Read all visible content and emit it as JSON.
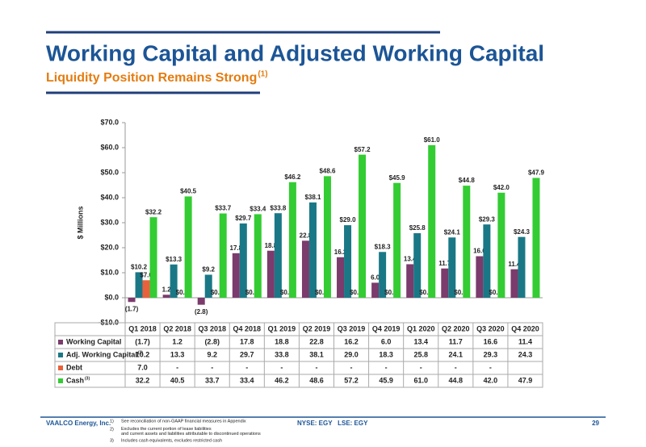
{
  "header": {
    "title": "Working Capital and Adjusted Working Capital",
    "subtitle": "Liquidity Position Remains Strong",
    "subtitle_note": "(1)"
  },
  "chart_data": {
    "type": "bar",
    "ylabel": "$ Millions",
    "categories": [
      "Q1 2018",
      "Q2 2018",
      "Q3 2018",
      "Q4 2018",
      "Q1 2019",
      "Q2 2019",
      "Q3 2019",
      "Q4 2019",
      "Q1 2020",
      "Q2 2020",
      "Q3 2020",
      "Q4 2020"
    ],
    "ylim": [
      -10,
      70
    ],
    "yticks": [
      {
        "value": -10,
        "label": "-$10.0"
      },
      {
        "value": 0,
        "label": "$0.0"
      },
      {
        "value": 10,
        "label": "$10.0"
      },
      {
        "value": 20,
        "label": "$20.0"
      },
      {
        "value": 30,
        "label": "$30.0"
      },
      {
        "value": 40,
        "label": "$40.0"
      },
      {
        "value": 50,
        "label": "$50.0"
      },
      {
        "value": 60,
        "label": "$60.0"
      },
      {
        "value": 70,
        "label": "$70.0"
      }
    ],
    "series": [
      {
        "name": "Working Capital",
        "color": "#7b3b6c",
        "values": [
          -1.7,
          1.2,
          -2.8,
          17.8,
          18.8,
          22.8,
          16.2,
          6.0,
          13.4,
          11.7,
          16.6,
          11.4
        ],
        "value_labels": [
          "(1.7)",
          "1.2",
          "(2.8)",
          "17.8",
          "18.8",
          "22.8",
          "16.2",
          "6.0",
          "13.4",
          "11.7",
          "16.6",
          "11.4"
        ],
        "table_labels": [
          "(1.7)",
          "1.2",
          "(2.8)",
          "17.8",
          "18.8",
          "22.8",
          "16.2",
          "6.0",
          "13.4",
          "11.7",
          "16.6",
          "11.4"
        ]
      },
      {
        "name": "Adj. Working Capital",
        "name_note": "(2)",
        "color": "#1a7886",
        "values": [
          10.2,
          13.3,
          9.2,
          29.7,
          33.8,
          38.1,
          29.0,
          18.3,
          25.8,
          24.1,
          29.3,
          24.3
        ],
        "value_labels": [
          "$10.2",
          "$13.3",
          "$9.2",
          "$29.7",
          "$33.8",
          "$38.1",
          "$29.0",
          "$18.3",
          "$25.8",
          "$24.1",
          "$29.3",
          "$24.3"
        ],
        "table_labels": [
          "10.2",
          "13.3",
          "9.2",
          "29.7",
          "33.8",
          "38.1",
          "29.0",
          "18.3",
          "25.8",
          "24.1",
          "29.3",
          "24.3"
        ]
      },
      {
        "name": "Debt",
        "color": "#e8613c",
        "values": [
          7.0,
          0,
          0,
          0,
          0,
          0,
          0,
          0,
          0,
          0,
          0,
          null
        ],
        "value_labels": [
          "$7.0",
          "$0.0",
          "$0.0",
          "$0.0",
          "$0.0",
          "$0.0",
          "$0.0",
          "$0.0",
          "$0.0",
          "$0.0",
          "$0.0",
          null
        ],
        "table_labels": [
          "7.0",
          "-",
          "-",
          "-",
          "-",
          "-",
          "-",
          "-",
          "-",
          "-",
          "-",
          null
        ]
      },
      {
        "name": "Cash",
        "name_note": "(3)",
        "color": "#33cc33",
        "values": [
          32.2,
          40.5,
          33.7,
          33.4,
          46.2,
          48.6,
          57.2,
          45.9,
          61.0,
          44.8,
          42.0,
          47.9
        ],
        "value_labels": [
          "$32.2",
          "$40.5",
          "$33.7",
          "$33.4",
          "$46.2",
          "$48.6",
          "$57.2",
          "$45.9",
          "$61.0",
          "$44.8",
          "$42.0",
          "$47.9"
        ],
        "table_labels": [
          "32.2",
          "40.5",
          "33.7",
          "33.4",
          "46.2",
          "48.6",
          "57.2",
          "45.9",
          "61.0",
          "44.8",
          "42.0",
          "47.9"
        ]
      }
    ]
  },
  "footer": {
    "company": "VAALCO Energy, Inc.",
    "notes": [
      {
        "num": "1)",
        "text": "See reconciliation of non-GAAP financial measures in Appendix"
      },
      {
        "num": "2)",
        "text": "Excludes the current portion of lease liabilities and current assets and liabilities attributable to discontinued operations"
      },
      {
        "num": "3)",
        "text": "Includes cash equivalents, excludes restricted cash"
      }
    ],
    "ticker": "NYSE: EGY   LSE: EGY",
    "page": "29"
  }
}
